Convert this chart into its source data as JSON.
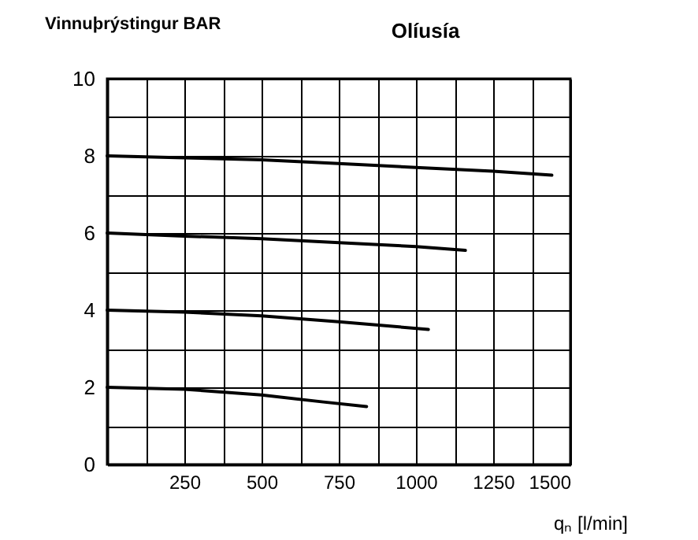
{
  "chart_data": {
    "type": "line",
    "title": "Olíusía",
    "ylabel": "Vinnuþrýstingur BAR",
    "xlabel": "qₙ [l/min]",
    "xlim": [
      0,
      1500
    ],
    "ylim": [
      0,
      10
    ],
    "xticks": [
      {
        "value": 0,
        "label": null
      },
      {
        "value": 125,
        "label": null
      },
      250,
      {
        "value": 375,
        "label": null
      },
      500,
      {
        "value": 625,
        "label": null
      },
      750,
      {
        "value": 875,
        "label": null
      },
      1000,
      {
        "value": 1125,
        "label": null
      },
      1250,
      {
        "value": 1375,
        "label": null
      },
      1500
    ],
    "yticks": [
      0,
      {
        "value": 1,
        "label": null
      },
      2,
      {
        "value": 3,
        "label": null
      },
      4,
      {
        "value": 5,
        "label": null
      },
      6,
      {
        "value": 7,
        "label": null
      },
      8,
      {
        "value": 9,
        "label": null
      },
      10
    ],
    "grid": true,
    "legend": false,
    "marker": "none",
    "line_style": "solid",
    "series": [
      {
        "color": "#000000",
        "x": [
          0,
          250,
          500,
          750,
          1000,
          1250,
          1440
        ],
        "values": [
          8,
          7.95,
          7.9,
          7.8,
          7.7,
          7.6,
          7.5
        ]
      },
      {
        "color": "#000000",
        "x": [
          0,
          250,
          500,
          750,
          1000,
          1160
        ],
        "values": [
          6,
          5.92,
          5.85,
          5.75,
          5.65,
          5.55
        ]
      },
      {
        "color": "#000000",
        "x": [
          0,
          250,
          500,
          750,
          1040
        ],
        "values": [
          4,
          3.95,
          3.85,
          3.7,
          3.5
        ]
      },
      {
        "color": "#000000",
        "x": [
          0,
          250,
          500,
          700,
          840
        ],
        "values": [
          2,
          1.95,
          1.8,
          1.62,
          1.5
        ]
      }
    ]
  }
}
